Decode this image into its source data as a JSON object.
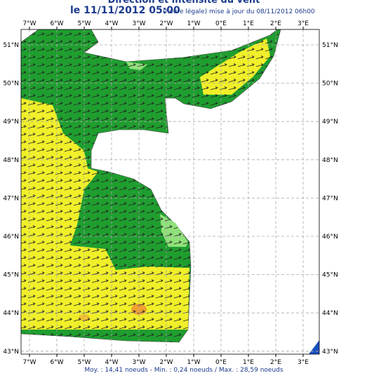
{
  "header": {
    "title": "Direction et intensité du vent",
    "date": "le 11/11/2012 05:00",
    "note": "(heure légale) mise à jour du 08/11/2012 06h00"
  },
  "map": {
    "lon_ticks": [
      "7°W",
      "6°W",
      "5°W",
      "4°W",
      "3°W",
      "2°W",
      "1°W",
      "0°E",
      "1°E",
      "2°E",
      "3°E"
    ],
    "lat_ticks": [
      "51°N",
      "50°N",
      "49°N",
      "48°N",
      "47°N",
      "46°N",
      "45°N",
      "44°N",
      "43°N"
    ]
  },
  "footer": "Moy. : 14,41 noeuds   -   Min. : 0,24 noeuds / Max. : 28,59 noeuds"
}
